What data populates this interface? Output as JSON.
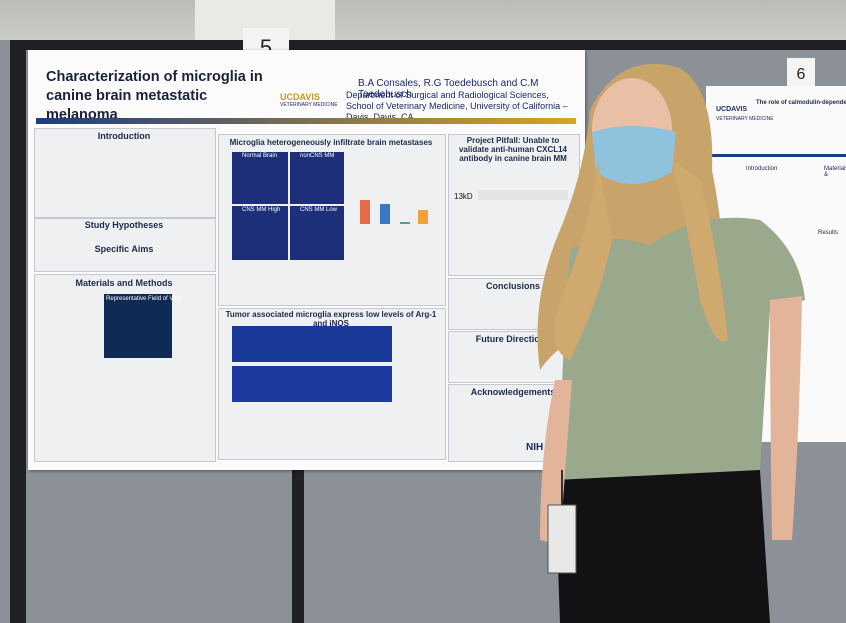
{
  "signs": [
    "5",
    "6"
  ],
  "poster": {
    "title": "Characterization of microglia in canine brain metastatic melanoma",
    "logo": "UCDAVIS",
    "logo_sub": "VETERINARY MEDICINE",
    "authors": "B.A Consales, R.G Toedebusch and C.M Toedebusch",
    "affiliation": "Department of Surgical and Radiological Sciences, School of Veterinary Medicine, University of California – Davis, Davis, CA",
    "sections": [
      "Introduction",
      "Study Hypotheses",
      "Specific Aims",
      "Materials and Methods",
      "Microglia heterogeneously infiltrate brain metastases",
      "Tumor associated microglia express low levels of Arg-1 and iNOS",
      "Project Pitfall: Unable to validate anti-human CXCL14 antibody in canine brain MM",
      "Conclusions",
      "Future Directions",
      "Acknowledgements"
    ],
    "labels": [
      "Representative Field of View",
      "Normal Brain",
      "nonCNS MM",
      "CNS MM High",
      "CNS MM Low",
      "13kD",
      "NIH"
    ]
  },
  "poster2": {
    "title": "The role of calmodulin-dependent protein kinase",
    "logo": "UCDAVIS",
    "logo_sub": "VETERINARY MEDICINE",
    "sections": [
      "Introduction",
      "Materials &",
      "Results"
    ]
  }
}
